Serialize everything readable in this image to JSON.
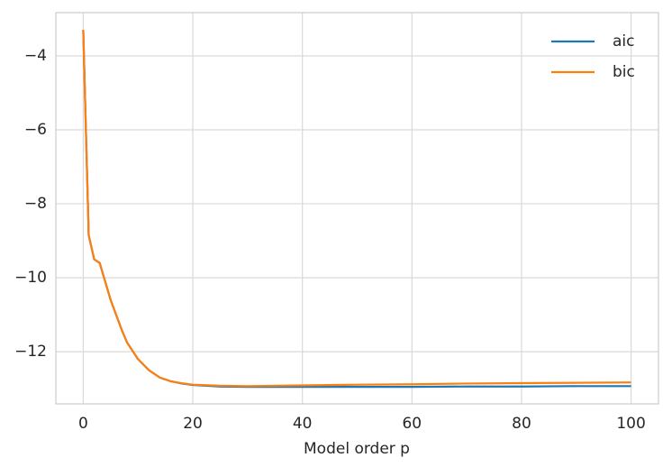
{
  "chart_data": {
    "type": "line",
    "xlabel": "Model order p",
    "x": [
      0,
      1,
      2,
      3,
      4,
      5,
      6,
      7,
      8,
      10,
      12,
      14,
      16,
      18,
      20,
      25,
      30,
      40,
      50,
      60,
      70,
      80,
      90,
      100
    ],
    "series": [
      {
        "name": "aic",
        "color": "#1f77b4",
        "values": [
          -3.3,
          -8.85,
          -9.5,
          -9.6,
          -10.1,
          -10.6,
          -11.0,
          -11.4,
          -11.75,
          -12.2,
          -12.5,
          -12.7,
          -12.8,
          -12.86,
          -12.9,
          -12.94,
          -12.95,
          -12.95,
          -12.95,
          -12.95,
          -12.94,
          -12.94,
          -12.93,
          -12.93
        ]
      },
      {
        "name": "bic",
        "color": "#ff7f0e",
        "values": [
          -3.3,
          -8.85,
          -9.5,
          -9.6,
          -10.1,
          -10.6,
          -11.0,
          -11.4,
          -11.75,
          -12.2,
          -12.5,
          -12.7,
          -12.8,
          -12.85,
          -12.89,
          -12.92,
          -12.93,
          -12.91,
          -12.89,
          -12.88,
          -12.86,
          -12.85,
          -12.84,
          -12.83
        ]
      }
    ],
    "xlim": [
      -5,
      105
    ],
    "ylim": [
      -13.41,
      -2.83
    ],
    "xticks": [
      0,
      20,
      40,
      60,
      80,
      100
    ],
    "yticks": [
      {
        "value": -12,
        "label": "−12"
      },
      {
        "value": -10,
        "label": "−10"
      },
      {
        "value": -8,
        "label": "−8"
      },
      {
        "value": -6,
        "label": "−6"
      },
      {
        "value": -4,
        "label": "−4"
      }
    ],
    "grid": true,
    "legend": "upper right"
  }
}
